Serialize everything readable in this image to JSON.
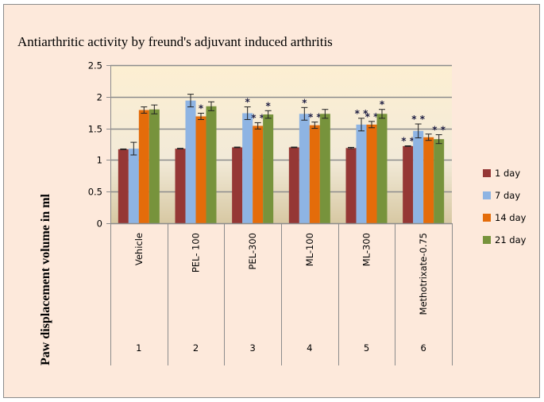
{
  "chart_data": {
    "type": "bar",
    "title": "Antiarthritic activity by freund's adjuvant induced arthritis",
    "xlabel": "",
    "ylabel": "Paw displacement volume in ml",
    "ylim": [
      0,
      2.5
    ],
    "yticks": [
      "0",
      "0.5",
      "1",
      "1.5",
      "2",
      "2.5"
    ],
    "ytick_values": [
      0,
      0.5,
      1,
      1.5,
      2,
      2.5
    ],
    "grid": true,
    "legend_position": "right",
    "categories": [
      "Vehicle",
      "PEL- 100",
      "PEL-300",
      "ML-100",
      "ML-300",
      "Methotrixate-0.75"
    ],
    "category_numbers": [
      "1",
      "2",
      "3",
      "4",
      "5",
      "6"
    ],
    "series": [
      {
        "name": "1 day",
        "color": "#953735",
        "values": [
          1.17,
          1.18,
          1.2,
          1.2,
          1.19,
          1.22
        ],
        "errors": [
          0.005,
          0.005,
          0.005,
          0.005,
          0.01,
          0.005
        ],
        "significance": [
          "",
          "",
          "",
          "",
          "",
          "**"
        ]
      },
      {
        "name": "7 day",
        "color": "#8eb4e3",
        "values": [
          1.18,
          1.94,
          1.74,
          1.73,
          1.56,
          1.46
        ],
        "errors": [
          0.1,
          0.1,
          0.1,
          0.1,
          0.1,
          0.11
        ],
        "significance": [
          "",
          "",
          "*",
          "*",
          "**",
          "**"
        ]
      },
      {
        "name": "14 day",
        "color": "#e46c0a",
        "values": [
          1.79,
          1.69,
          1.54,
          1.55,
          1.56,
          1.36
        ],
        "errors": [
          0.05,
          0.05,
          0.05,
          0.05,
          0.05,
          0.05
        ],
        "significance": [
          "",
          "*",
          "**",
          "**",
          "**",
          ""
        ]
      },
      {
        "name": "21 day",
        "color": "#77933c",
        "values": [
          1.8,
          1.85,
          1.72,
          1.73,
          1.73,
          1.33
        ],
        "errors": [
          0.07,
          0.07,
          0.06,
          0.07,
          0.07,
          0.07
        ],
        "significance": [
          "",
          "",
          "*",
          "",
          "*",
          "**"
        ]
      }
    ]
  }
}
